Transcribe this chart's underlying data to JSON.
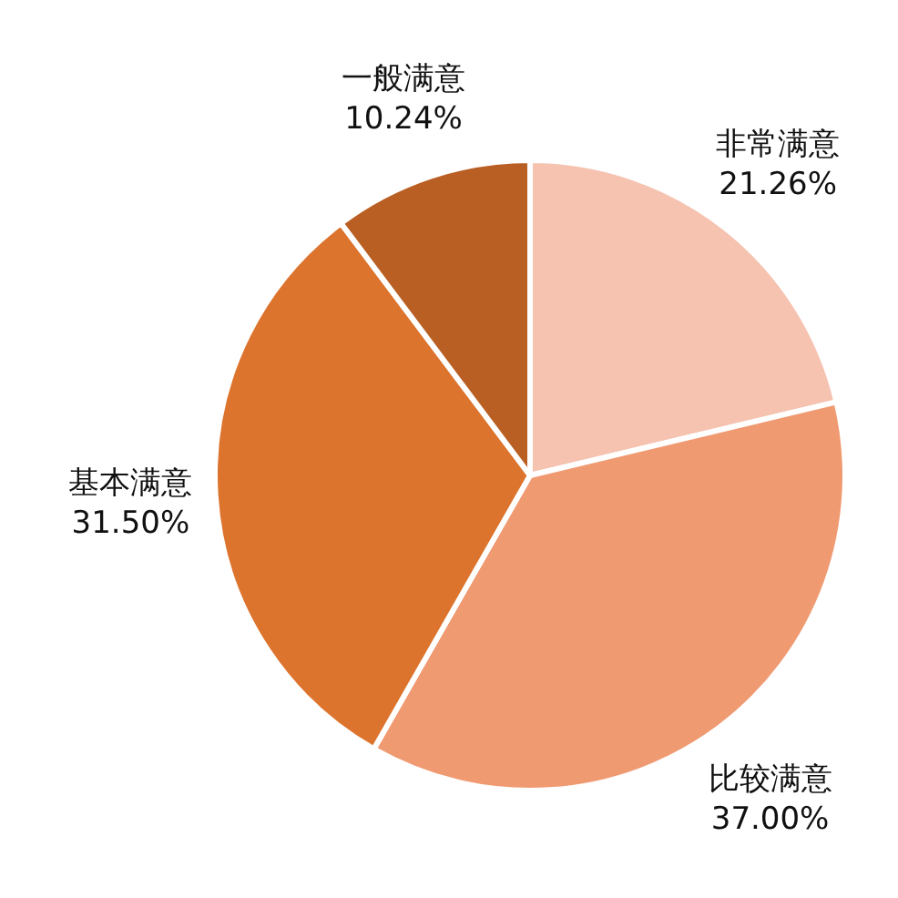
{
  "chart_data": {
    "type": "pie",
    "categories": [
      "非常满意",
      "比较满意",
      "基本满意",
      "一般满意"
    ],
    "values": [
      21.26,
      37.0,
      31.5,
      10.24
    ],
    "value_labels": [
      "21.26%",
      "37.00%",
      "31.50%",
      "10.24%"
    ],
    "colors": [
      "#f5c3b0",
      "#f09a72",
      "#dd742e",
      "#b95f24"
    ],
    "legend": false
  }
}
